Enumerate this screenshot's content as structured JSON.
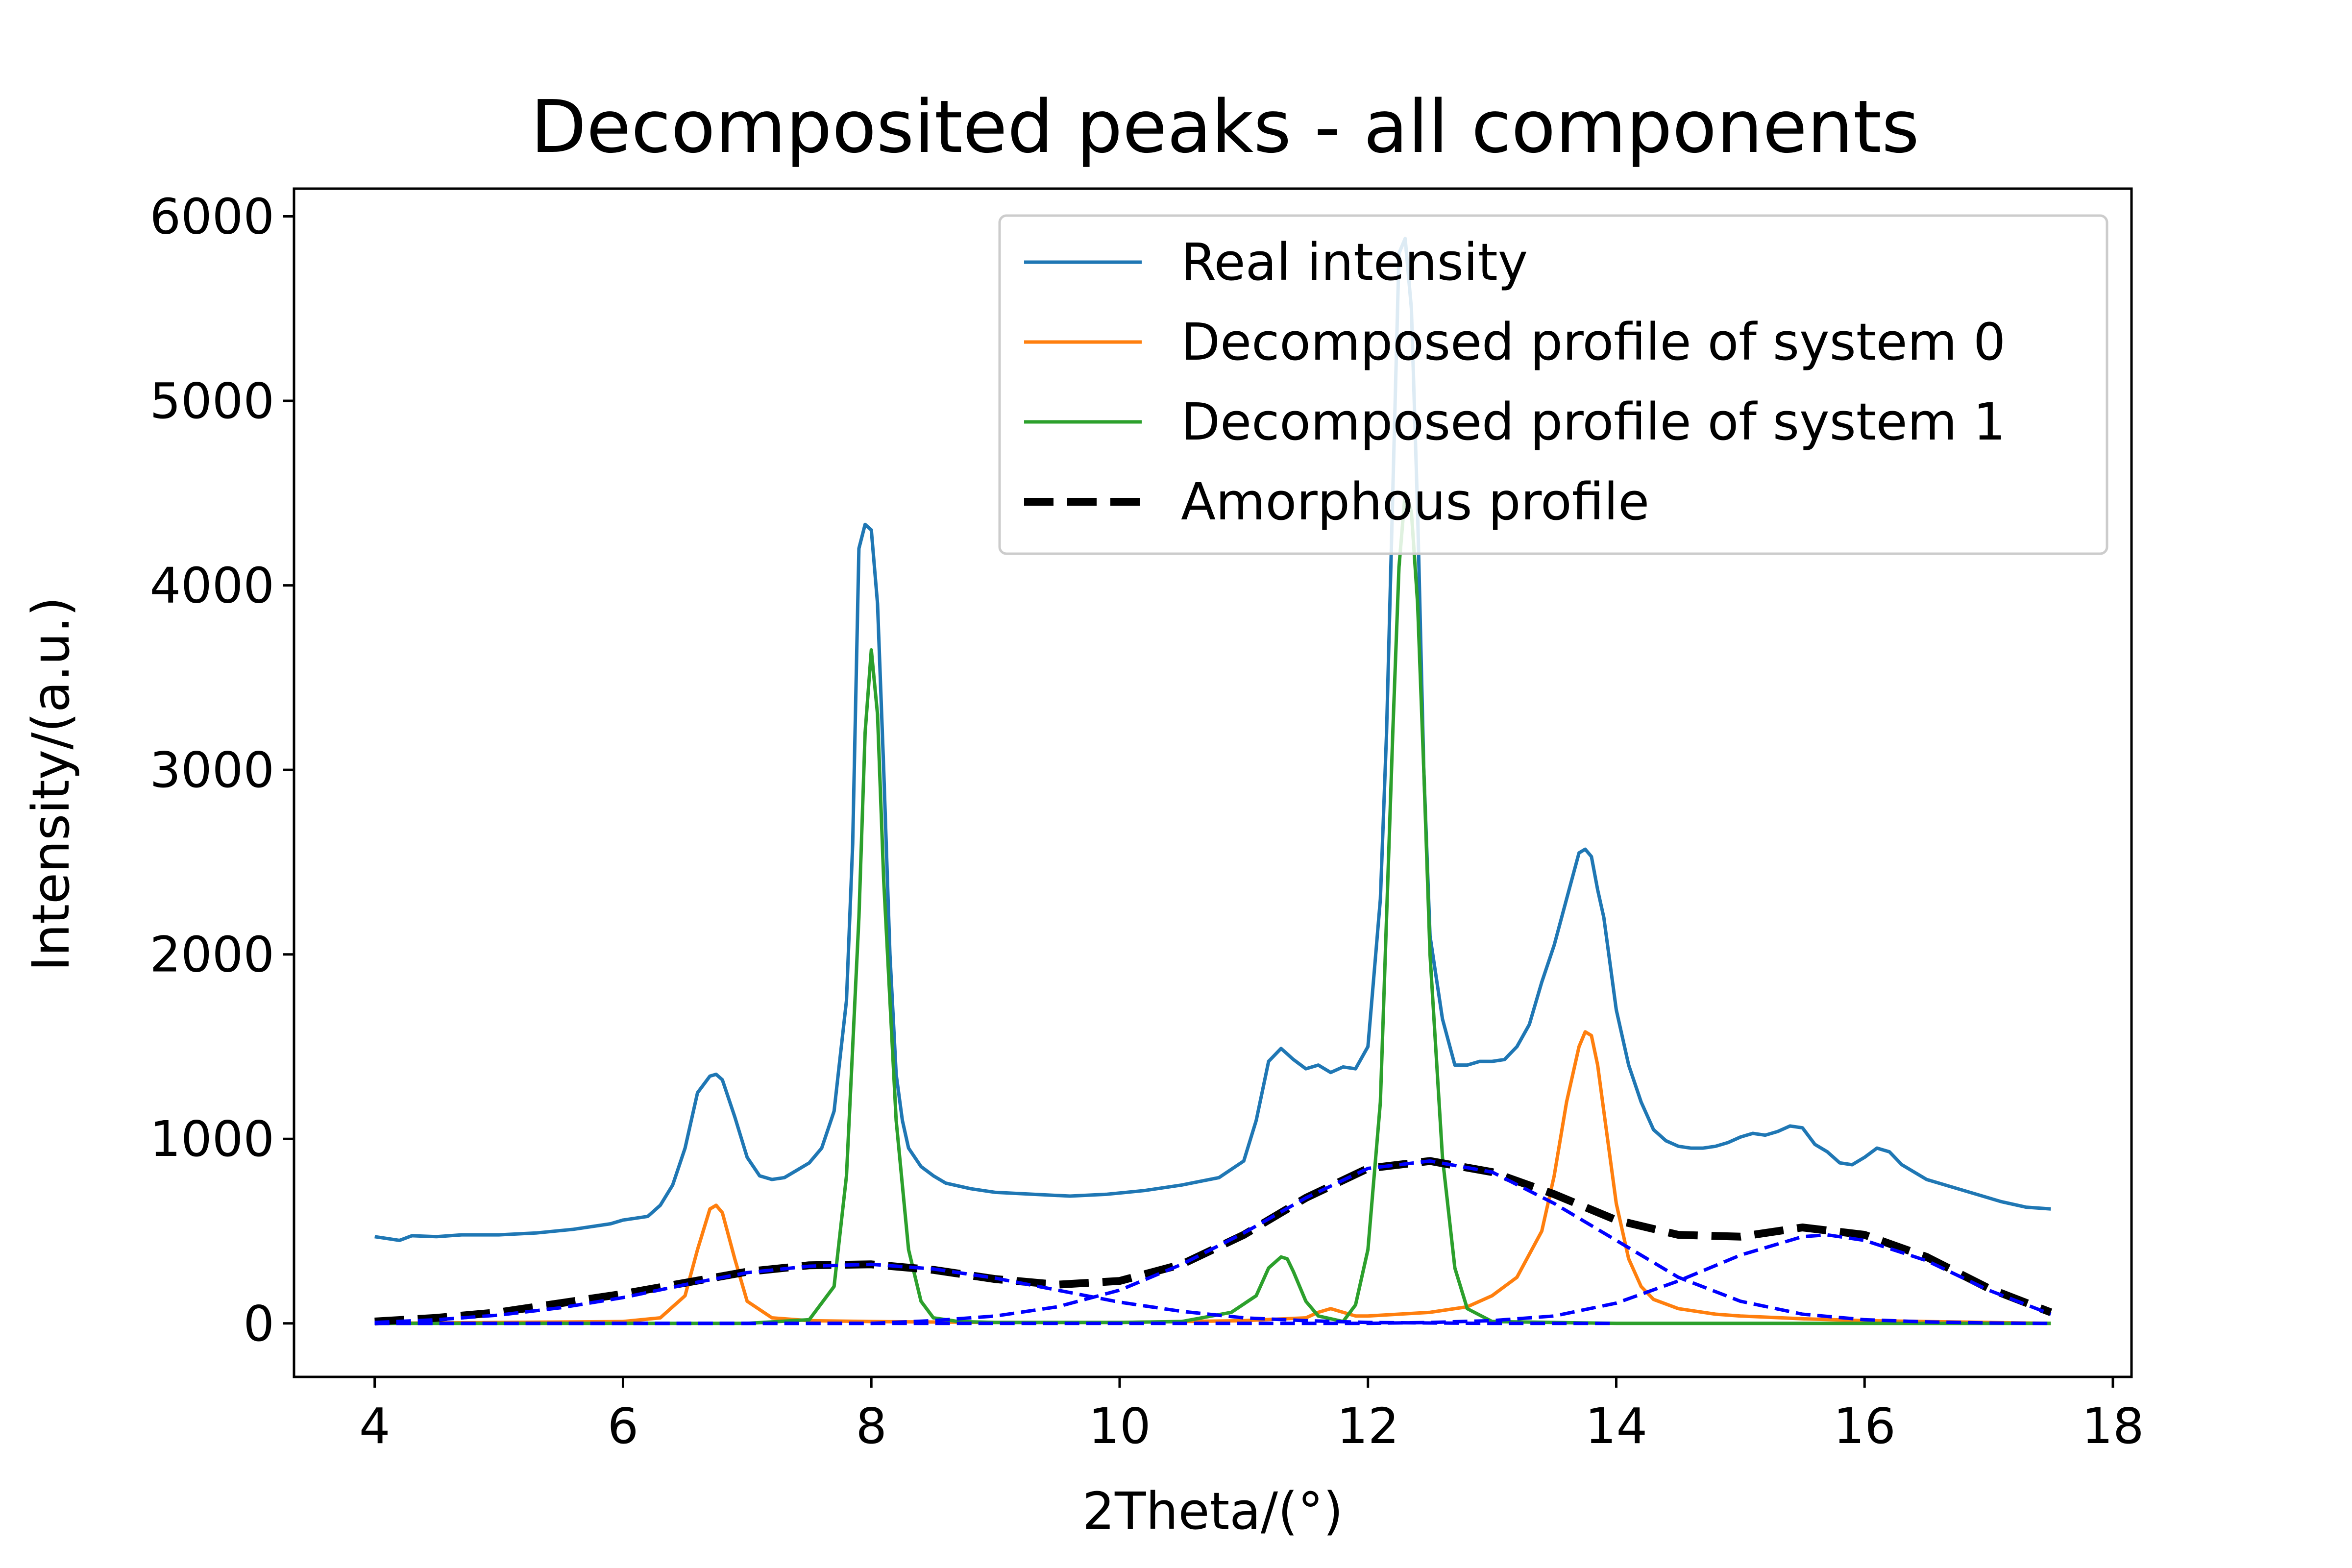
{
  "chart_data": {
    "type": "line",
    "title": "Decomposited peaks - all components",
    "xlabel": "2Theta/(°)",
    "ylabel": "Intensity/(a.u.)",
    "xlim": [
      3.35,
      18.15
    ],
    "ylim": [
      -290,
      6150
    ],
    "xticks": [
      4,
      6,
      8,
      10,
      12,
      14,
      16,
      18
    ],
    "yticks": [
      0,
      1000,
      2000,
      3000,
      4000,
      5000,
      6000
    ],
    "grid": false,
    "legend_position": "top-right",
    "colors": {
      "real": "#1f77b4",
      "system0": "#ff7f0e",
      "system1": "#2ca02c",
      "amorphous": "#000000",
      "amorphous_components": "#0000ff"
    },
    "series": [
      {
        "name": "Real intensity",
        "color": "#1f77b4",
        "style": "solid",
        "x": [
          4.0,
          4.1,
          4.2,
          4.3,
          4.5,
          4.7,
          5.0,
          5.3,
          5.6,
          5.9,
          6.0,
          6.2,
          6.3,
          6.4,
          6.5,
          6.6,
          6.7,
          6.75,
          6.8,
          6.9,
          7.0,
          7.1,
          7.2,
          7.3,
          7.4,
          7.5,
          7.6,
          7.7,
          7.8,
          7.85,
          7.9,
          7.95,
          8.0,
          8.05,
          8.1,
          8.15,
          8.2,
          8.25,
          8.3,
          8.4,
          8.5,
          8.6,
          8.8,
          9.0,
          9.3,
          9.6,
          9.9,
          10.2,
          10.5,
          10.8,
          11.0,
          11.1,
          11.2,
          11.3,
          11.4,
          11.5,
          11.6,
          11.7,
          11.8,
          11.9,
          12.0,
          12.1,
          12.15,
          12.2,
          12.25,
          12.3,
          12.35,
          12.4,
          12.45,
          12.5,
          12.6,
          12.7,
          12.8,
          12.9,
          13.0,
          13.1,
          13.2,
          13.3,
          13.4,
          13.5,
          13.6,
          13.7,
          13.75,
          13.8,
          13.85,
          13.9,
          14.0,
          14.1,
          14.2,
          14.3,
          14.4,
          14.5,
          14.6,
          14.7,
          14.8,
          14.9,
          15.0,
          15.1,
          15.2,
          15.3,
          15.4,
          15.5,
          15.6,
          15.7,
          15.8,
          15.9,
          16.0,
          16.1,
          16.2,
          16.3,
          16.5,
          16.7,
          16.9,
          17.1,
          17.3,
          17.5
        ],
        "values": [
          470,
          460,
          450,
          475,
          470,
          480,
          480,
          490,
          510,
          540,
          560,
          580,
          640,
          750,
          950,
          1250,
          1340,
          1350,
          1320,
          1120,
          900,
          800,
          780,
          790,
          830,
          870,
          950,
          1150,
          1750,
          2600,
          4200,
          4330,
          4300,
          3900,
          3000,
          2000,
          1350,
          1100,
          950,
          850,
          800,
          760,
          730,
          710,
          700,
          690,
          700,
          720,
          750,
          790,
          880,
          1100,
          1420,
          1490,
          1430,
          1380,
          1400,
          1360,
          1390,
          1380,
          1500,
          2300,
          3200,
          4500,
          5800,
          5880,
          5500,
          4400,
          3000,
          2100,
          1650,
          1400,
          1400,
          1420,
          1420,
          1430,
          1500,
          1620,
          1850,
          2050,
          2300,
          2550,
          2570,
          2530,
          2350,
          2200,
          1700,
          1400,
          1200,
          1050,
          990,
          960,
          950,
          950,
          960,
          980,
          1010,
          1030,
          1020,
          1040,
          1070,
          1060,
          970,
          930,
          870,
          860,
          900,
          950,
          930,
          860,
          780,
          740,
          700,
          660,
          630,
          620
        ]
      },
      {
        "name": "Decomposed profile of system  0",
        "color": "#ff7f0e",
        "style": "solid",
        "x": [
          4.0,
          5.0,
          6.0,
          6.3,
          6.5,
          6.6,
          6.7,
          6.75,
          6.8,
          6.9,
          7.0,
          7.2,
          7.5,
          8.0,
          9.0,
          10.0,
          11.0,
          11.5,
          11.6,
          11.7,
          11.8,
          11.9,
          12.0,
          12.5,
          12.8,
          13.0,
          13.2,
          13.4,
          13.5,
          13.6,
          13.7,
          13.75,
          13.8,
          13.85,
          13.9,
          14.0,
          14.1,
          14.2,
          14.3,
          14.5,
          14.8,
          15.0,
          15.5,
          16.0,
          17.0,
          17.5
        ],
        "values": [
          0,
          5,
          10,
          30,
          150,
          400,
          620,
          640,
          600,
          350,
          120,
          30,
          15,
          10,
          5,
          5,
          15,
          30,
          60,
          80,
          60,
          40,
          40,
          60,
          90,
          150,
          250,
          500,
          800,
          1200,
          1500,
          1580,
          1560,
          1400,
          1150,
          650,
          350,
          200,
          130,
          80,
          50,
          40,
          25,
          15,
          5,
          0
        ]
      },
      {
        "name": "Decomposed profile of system  1",
        "color": "#2ca02c",
        "style": "solid",
        "x": [
          4.0,
          6.0,
          7.0,
          7.5,
          7.7,
          7.8,
          7.9,
          7.95,
          8.0,
          8.05,
          8.1,
          8.2,
          8.3,
          8.4,
          8.5,
          8.7,
          9.0,
          10.0,
          10.5,
          10.9,
          11.1,
          11.2,
          11.3,
          11.35,
          11.4,
          11.5,
          11.6,
          11.8,
          11.9,
          12.0,
          12.1,
          12.15,
          12.2,
          12.25,
          12.3,
          12.35,
          12.4,
          12.45,
          12.5,
          12.6,
          12.7,
          12.8,
          13.0,
          14.0,
          15.0,
          16.0,
          17.5
        ],
        "values": [
          0,
          0,
          0,
          20,
          200,
          800,
          2200,
          3200,
          3650,
          3300,
          2400,
          1100,
          400,
          120,
          30,
          10,
          5,
          5,
          10,
          60,
          150,
          300,
          360,
          350,
          280,
          120,
          40,
          10,
          100,
          400,
          1200,
          2200,
          3200,
          4100,
          4500,
          4400,
          3900,
          3000,
          2000,
          900,
          300,
          80,
          10,
          0,
          0,
          0,
          0
        ]
      },
      {
        "name": "Amorphous profile",
        "color": "#000000",
        "style": "dashed",
        "x": [
          4.0,
          4.5,
          5.0,
          5.5,
          6.0,
          6.5,
          7.0,
          7.5,
          8.0,
          8.5,
          9.0,
          9.5,
          10.0,
          10.5,
          11.0,
          11.5,
          12.0,
          12.5,
          13.0,
          13.5,
          14.0,
          14.5,
          15.0,
          15.5,
          16.0,
          16.5,
          17.0,
          17.5
        ],
        "values": [
          10,
          30,
          60,
          110,
          160,
          220,
          280,
          315,
          320,
          290,
          240,
          210,
          230,
          320,
          480,
          680,
          840,
          880,
          820,
          700,
          560,
          480,
          470,
          520,
          480,
          360,
          190,
          60
        ]
      },
      {
        "name": "",
        "color": "#0000ff",
        "style": "dashed-thin",
        "x": [
          4.0,
          4.5,
          5.0,
          5.5,
          6.0,
          6.5,
          7.0,
          7.5,
          8.0,
          8.5,
          9.0,
          9.5,
          10.0,
          10.5,
          11.0,
          11.5,
          12.0,
          12.5,
          13.0,
          13.5,
          14.0
        ],
        "values": [
          5,
          20,
          45,
          85,
          140,
          210,
          275,
          310,
          320,
          295,
          245,
          180,
          115,
          65,
          30,
          15,
          5,
          2,
          0,
          0,
          0
        ]
      },
      {
        "name": "",
        "color": "#0000ff",
        "style": "dashed-thin",
        "x": [
          4.0,
          8.0,
          8.5,
          9.0,
          9.5,
          10.0,
          10.5,
          11.0,
          11.5,
          12.0,
          12.5,
          13.0,
          13.5,
          14.0,
          14.5,
          15.0,
          15.5,
          16.0,
          16.5,
          17.0,
          17.5
        ],
        "values": [
          0,
          0,
          15,
          40,
          90,
          180,
          320,
          490,
          680,
          840,
          880,
          820,
          650,
          450,
          250,
          120,
          50,
          20,
          8,
          2,
          0
        ]
      },
      {
        "name": "",
        "color": "#0000ff",
        "style": "dashed-thin",
        "x": [
          4.0,
          12.0,
          12.5,
          13.0,
          13.5,
          14.0,
          14.5,
          15.0,
          15.5,
          15.7,
          16.0,
          16.5,
          17.0,
          17.5
        ],
        "values": [
          0,
          0,
          5,
          15,
          40,
          110,
          230,
          370,
          470,
          480,
          450,
          340,
          180,
          50
        ]
      }
    ],
    "legend": [
      {
        "label": "Real intensity",
        "color": "#1f77b4",
        "style": "solid"
      },
      {
        "label": "Decomposed profile of system  0",
        "color": "#ff7f0e",
        "style": "solid"
      },
      {
        "label": "Decomposed profile of system  1",
        "color": "#2ca02c",
        "style": "solid"
      },
      {
        "label": " Amorphous profile",
        "color": "#000000",
        "style": "dashed"
      }
    ]
  }
}
